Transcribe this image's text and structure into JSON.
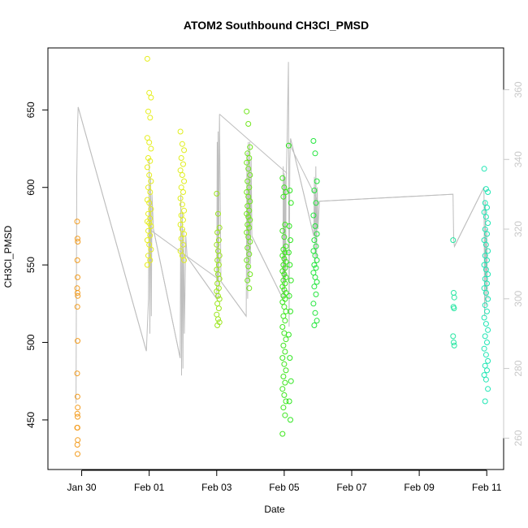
{
  "chart_data": {
    "type": "scatter",
    "title": "ATOM2 Southbound CH3Cl_PMSD",
    "xlabel": "Date",
    "ylabel": "CH3Cl_PMSD",
    "x_axis": {
      "type": "date",
      "range": [
        "2017-01-29 00:00",
        "2017-02-11 12:00"
      ],
      "ticks": [
        "2017-01-30",
        "2017-02-01",
        "2017-02-03",
        "2017-02-05",
        "2017-02-07",
        "2017-02-09",
        "2017-02-11"
      ],
      "tick_labels": [
        "Jan 30",
        "Feb 01",
        "Feb 03",
        "Feb 05",
        "Feb 07",
        "Feb 09",
        "Feb 11"
      ]
    },
    "y_axis_left": {
      "range": [
        418,
        690
      ],
      "ticks": [
        450,
        500,
        550,
        600,
        650
      ],
      "tick_labels": [
        "450",
        "500",
        "550",
        "600",
        "650"
      ]
    },
    "y_axis_right": {
      "range": [
        251,
        372
      ],
      "ticks": [
        260,
        280,
        300,
        320,
        340,
        360
      ],
      "tick_labels": [
        "260",
        "280",
        "300",
        "320",
        "340",
        "360"
      ],
      "color": "#c8c8c8"
    },
    "grid": false,
    "legend": "none",
    "line_color": "#bebebe",
    "series": [
      {
        "color": "#f39c1e",
        "date": "2017-01-29",
        "hour": 21,
        "spread_hours": 0.2,
        "values": [
          578,
          567,
          565,
          553,
          542,
          535,
          532,
          530,
          523,
          501,
          480,
          465,
          458,
          454,
          452,
          445,
          445,
          437,
          434,
          428
        ]
      },
      {
        "color": "#e6ee1e",
        "date": "2017-02-01",
        "hour": 0,
        "spread_hours": 1.3,
        "values": [
          683,
          661,
          658,
          649,
          645,
          632,
          629,
          625,
          619,
          617,
          613,
          608,
          604,
          600,
          597,
          592,
          590,
          586,
          583,
          580,
          578,
          577,
          575,
          572,
          569,
          566,
          563,
          560,
          556,
          553,
          550
        ]
      },
      {
        "color": "#e0ee1e",
        "date": "2017-02-01",
        "hour": 23.5,
        "spread_hours": 1.3,
        "values": [
          636,
          628,
          624,
          619,
          615,
          611,
          608,
          604,
          600,
          597,
          593,
          589,
          585,
          582,
          579,
          576,
          573,
          570,
          567,
          563,
          559,
          556,
          553
        ]
      },
      {
        "color": "#9ce61e",
        "date": "2017-02-03",
        "hour": 1,
        "spread_hours": 1.0,
        "values": [
          596,
          583,
          574,
          571,
          566,
          563,
          559,
          556,
          553,
          550,
          547,
          544,
          541,
          538,
          535,
          533,
          530,
          528,
          525,
          522,
          518,
          515,
          513,
          511
        ]
      },
      {
        "color": "#72e61e",
        "date": "2017-02-03",
        "hour": 22.5,
        "spread_hours": 1.2,
        "values": [
          649,
          641,
          626,
          622,
          619,
          616,
          612,
          608,
          604,
          600,
          597,
          594,
          591,
          588,
          585,
          583,
          581,
          579,
          576,
          574,
          571,
          568,
          565,
          561,
          557,
          553,
          549,
          544,
          540,
          535
        ]
      },
      {
        "color": "#3ee61e",
        "date": "2017-02-05",
        "hour": 0,
        "spread_hours": 1.2,
        "values": [
          606,
          600,
          597,
          594,
          576,
          572,
          568,
          562,
          560,
          558,
          556,
          554,
          552,
          550,
          548,
          546,
          544,
          542,
          540,
          538,
          536,
          534,
          532,
          530,
          528,
          526,
          523,
          520,
          517,
          514,
          510,
          506,
          502,
          498,
          494,
          490,
          486,
          482,
          478,
          474,
          470,
          466,
          462,
          458,
          453,
          441
        ]
      },
      {
        "color": "#2ee61e",
        "date": "2017-02-05",
        "hour": 4,
        "spread_hours": 0.8,
        "values": [
          627,
          598,
          590,
          575,
          566,
          558,
          550,
          540,
          530,
          520,
          505,
          490,
          475,
          462,
          450
        ]
      },
      {
        "color": "#22e63c",
        "date": "2017-02-05",
        "hour": 22,
        "spread_hours": 1.2,
        "values": [
          630,
          622,
          604,
          598,
          590,
          582,
          575,
          570,
          566,
          562,
          559,
          556,
          553,
          550,
          548,
          545,
          542,
          539,
          536,
          531,
          525,
          519,
          514,
          511
        ]
      },
      {
        "color": "#22e6a0",
        "date": "2017-02-10",
        "hour": 0.5,
        "spread_hours": 0.4,
        "values": [
          566,
          532,
          529,
          523,
          522,
          504,
          500,
          498
        ]
      },
      {
        "color": "#1ee6b4",
        "date": "2017-02-10",
        "hour": 23.5,
        "spread_hours": 1.3,
        "values": [
          612,
          599,
          597,
          590,
          587,
          584,
          581,
          577,
          573,
          570,
          566,
          563,
          559,
          556,
          553,
          550,
          547,
          544,
          541,
          538,
          535,
          532,
          528,
          524,
          520,
          516,
          512,
          508,
          504,
          500,
          496,
          492,
          488,
          485,
          482,
          479,
          476,
          470,
          462
        ]
      }
    ],
    "line_right_axis": [
      [
        "2017-01-29 20:00",
        270
      ],
      [
        "2017-01-29 20:30",
        335
      ],
      [
        "2017-01-29 21:00",
        349
      ],
      [
        "2017-01-29 21:30",
        355
      ],
      [
        "2017-01-31 22:00",
        285
      ],
      [
        "2017-01-31 23:30",
        300
      ],
      [
        "2017-02-01 00:00",
        340
      ],
      [
        "2017-02-01 00:30",
        290
      ],
      [
        "2017-02-01 01:00",
        335
      ],
      [
        "2017-02-01 01:30",
        295
      ],
      [
        "2017-02-01 02:00",
        330
      ],
      [
        "2017-02-01 03:00",
        320
      ],
      [
        "2017-02-01 22:00",
        283
      ],
      [
        "2017-02-01 22:30",
        330
      ],
      [
        "2017-02-01 23:00",
        278
      ],
      [
        "2017-02-01 23:30",
        325
      ],
      [
        "2017-02-02 00:00",
        280
      ],
      [
        "2017-02-02 00:30",
        320
      ],
      [
        "2017-02-02 01:00",
        290
      ],
      [
        "2017-02-02 02:00",
        318
      ],
      [
        "2017-02-02 03:00",
        312
      ],
      [
        "2017-02-03 00:00",
        300
      ],
      [
        "2017-02-03 00:20",
        345
      ],
      [
        "2017-02-03 00:40",
        305
      ],
      [
        "2017-02-03 01:00",
        348
      ],
      [
        "2017-02-03 01:20",
        300
      ],
      [
        "2017-02-03 01:40",
        340
      ],
      [
        "2017-02-03 02:00",
        353
      ],
      [
        "2017-02-03 03:00",
        305
      ],
      [
        "2017-02-03 21:00",
        295
      ],
      [
        "2017-02-03 21:30",
        342
      ],
      [
        "2017-02-03 22:00",
        300
      ],
      [
        "2017-02-03 22:30",
        345
      ],
      [
        "2017-02-03 23:00",
        305
      ],
      [
        "2017-02-03 23:30",
        345
      ],
      [
        "2017-02-04 00:00",
        310
      ],
      [
        "2017-02-04 00:30",
        340
      ],
      [
        "2017-02-04 01:00",
        318
      ],
      [
        "2017-02-04 23:00",
        300
      ],
      [
        "2017-02-04 23:20",
        338
      ],
      [
        "2017-02-04 23:40",
        305
      ],
      [
        "2017-02-05 00:00",
        336
      ],
      [
        "2017-02-05 00:20",
        300
      ],
      [
        "2017-02-05 00:40",
        335
      ],
      [
        "2017-02-05 01:00",
        306
      ],
      [
        "2017-02-05 01:20",
        333
      ],
      [
        "2017-02-05 02:00",
        345
      ],
      [
        "2017-02-05 03:00",
        368
      ],
      [
        "2017-02-05 03:30",
        292
      ],
      [
        "2017-02-05 04:00",
        340
      ],
      [
        "2017-02-05 04:30",
        346
      ],
      [
        "2017-02-05 21:00",
        318
      ],
      [
        "2017-02-05 21:30",
        335
      ],
      [
        "2017-02-05 22:00",
        310
      ],
      [
        "2017-02-05 22:30",
        338
      ],
      [
        "2017-02-05 23:00",
        312
      ],
      [
        "2017-02-05 23:30",
        332
      ],
      [
        "2017-02-06 00:00",
        320
      ],
      [
        "2017-02-06 01:00",
        328
      ],
      [
        "2017-02-10 00:00",
        330
      ],
      [
        "2017-02-10 00:30",
        317
      ],
      [
        "2017-02-10 01:00",
        315
      ],
      [
        "2017-02-10 22:00",
        332
      ],
      [
        "2017-02-10 22:30",
        295
      ],
      [
        "2017-02-10 23:00",
        328
      ],
      [
        "2017-02-10 23:30",
        298
      ],
      [
        "2017-02-11 00:00",
        320
      ],
      [
        "2017-02-11 00:30",
        302
      ],
      [
        "2017-02-11 01:00",
        300
      ]
    ],
    "line_connectors": [
      [
        [
          "2017-01-29 21:30",
          355
        ],
        [
          "2017-01-31 22:00",
          285
        ]
      ],
      [
        [
          "2017-02-01 03:00",
          320
        ],
        [
          "2017-02-01 22:00",
          283
        ]
      ],
      [
        [
          "2017-02-02 03:00",
          312
        ],
        [
          "2017-02-03 00:00",
          300
        ]
      ],
      [
        [
          "2017-02-03 03:00",
          305
        ],
        [
          "2017-02-03 21:00",
          295
        ]
      ],
      [
        [
          "2017-02-04 01:00",
          318
        ],
        [
          "2017-02-04 23:00",
          300
        ]
      ],
      [
        [
          "2017-02-05 04:30",
          346
        ],
        [
          "2017-02-05 21:00",
          318
        ]
      ],
      [
        [
          "2017-02-06 01:00",
          328
        ],
        [
          "2017-02-10 00:00",
          330
        ]
      ],
      [
        [
          "2017-02-10 01:00",
          315
        ],
        [
          "2017-02-10 22:00",
          332
        ]
      ],
      [
        [
          "2017-02-01 00:00",
          320
        ],
        [
          "2017-02-03 00:00",
          306
        ]
      ],
      [
        [
          "2017-02-03 02:00",
          353
        ],
        [
          "2017-02-05 02:00",
          336
        ]
      ],
      [
        [
          "2017-02-05 03:00",
          345
        ],
        [
          "2017-02-06 00:00",
          328
        ]
      ]
    ]
  }
}
